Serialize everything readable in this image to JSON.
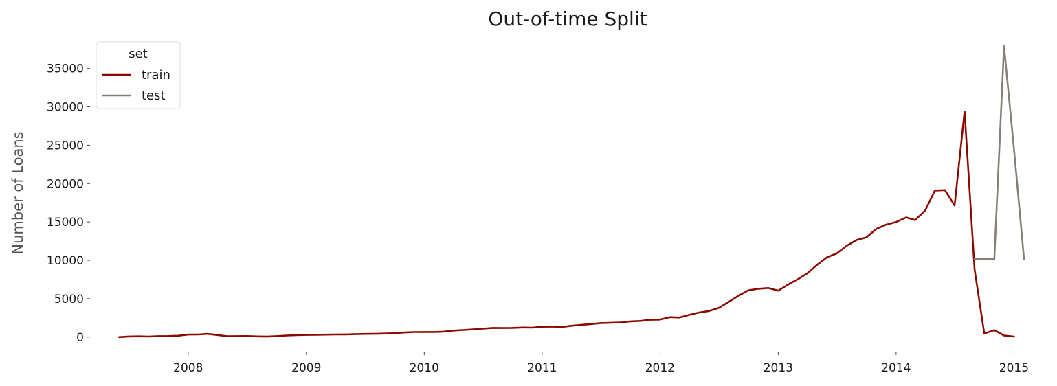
{
  "chart_data": {
    "type": "line",
    "title": "Out-of-time Split",
    "xlabel": "",
    "ylabel": "Number of Loans",
    "grid": false,
    "legend": {
      "title": "set",
      "placement": "top-left"
    },
    "xlim": [
      "2007-03-01",
      "2015-02-01"
    ],
    "ylim": [
      -1900,
      39000
    ],
    "x_ticks": [
      "2008",
      "2009",
      "2010",
      "2011",
      "2012",
      "2013",
      "2014",
      "2015"
    ],
    "y_ticks": [
      0,
      5000,
      10000,
      15000,
      20000,
      25000,
      30000,
      35000
    ],
    "series": [
      {
        "name": "train",
        "color": "#8b0a00",
        "points": [
          [
            "2007-06-01",
            0
          ],
          [
            "2007-07-01",
            80
          ],
          [
            "2007-08-01",
            100
          ],
          [
            "2007-09-01",
            70
          ],
          [
            "2007-10-01",
            120
          ],
          [
            "2007-11-01",
            130
          ],
          [
            "2007-12-01",
            180
          ],
          [
            "2008-01-01",
            330
          ],
          [
            "2008-02-01",
            340
          ],
          [
            "2008-03-01",
            420
          ],
          [
            "2008-04-01",
            270
          ],
          [
            "2008-05-01",
            110
          ],
          [
            "2008-06-01",
            120
          ],
          [
            "2008-07-01",
            130
          ],
          [
            "2008-08-01",
            90
          ],
          [
            "2008-09-01",
            60
          ],
          [
            "2008-10-01",
            120
          ],
          [
            "2008-11-01",
            200
          ],
          [
            "2008-12-01",
            250
          ],
          [
            "2009-01-01",
            280
          ],
          [
            "2009-02-01",
            290
          ],
          [
            "2009-03-01",
            320
          ],
          [
            "2009-04-01",
            340
          ],
          [
            "2009-05-01",
            350
          ],
          [
            "2009-06-01",
            370
          ],
          [
            "2009-07-01",
            410
          ],
          [
            "2009-08-01",
            420
          ],
          [
            "2009-09-01",
            450
          ],
          [
            "2009-10-01",
            500
          ],
          [
            "2009-11-01",
            600
          ],
          [
            "2009-12-01",
            650
          ],
          [
            "2010-01-01",
            660
          ],
          [
            "2010-02-01",
            660
          ],
          [
            "2010-03-01",
            700
          ],
          [
            "2010-04-01",
            850
          ],
          [
            "2010-05-01",
            920
          ],
          [
            "2010-06-01",
            1000
          ],
          [
            "2010-07-01",
            1100
          ],
          [
            "2010-08-01",
            1200
          ],
          [
            "2010-09-01",
            1180
          ],
          [
            "2010-10-01",
            1200
          ],
          [
            "2010-11-01",
            1250
          ],
          [
            "2010-12-01",
            1230
          ],
          [
            "2011-01-01",
            1350
          ],
          [
            "2011-02-01",
            1380
          ],
          [
            "2011-03-01",
            1300
          ],
          [
            "2011-04-01",
            1470
          ],
          [
            "2011-05-01",
            1580
          ],
          [
            "2011-06-01",
            1700
          ],
          [
            "2011-07-01",
            1820
          ],
          [
            "2011-08-01",
            1860
          ],
          [
            "2011-09-01",
            1900
          ],
          [
            "2011-10-01",
            2050
          ],
          [
            "2011-11-01",
            2100
          ],
          [
            "2011-12-01",
            2250
          ],
          [
            "2012-01-01",
            2280
          ],
          [
            "2012-02-01",
            2600
          ],
          [
            "2012-03-01",
            2550
          ],
          [
            "2012-04-01",
            2900
          ],
          [
            "2012-05-01",
            3200
          ],
          [
            "2012-06-01",
            3400
          ],
          [
            "2012-07-01",
            3800
          ],
          [
            "2012-08-01",
            4600
          ],
          [
            "2012-09-01",
            5400
          ],
          [
            "2012-10-01",
            6100
          ],
          [
            "2012-11-01",
            6300
          ],
          [
            "2012-12-01",
            6400
          ],
          [
            "2013-01-01",
            6050
          ],
          [
            "2013-02-01",
            6850
          ],
          [
            "2013-03-01",
            7500
          ],
          [
            "2013-04-01",
            8300
          ],
          [
            "2013-05-01",
            9400
          ],
          [
            "2013-06-01",
            10400
          ],
          [
            "2013-07-01",
            10900
          ],
          [
            "2013-08-01",
            11900
          ],
          [
            "2013-09-01",
            12650
          ],
          [
            "2013-10-01",
            13000
          ],
          [
            "2013-11-01",
            14100
          ],
          [
            "2013-12-01",
            14650
          ],
          [
            "2014-01-01",
            15000
          ],
          [
            "2014-02-01",
            15600
          ],
          [
            "2014-03-01",
            15250
          ],
          [
            "2014-04-01",
            16500
          ],
          [
            "2014-05-01",
            19100
          ],
          [
            "2014-06-01",
            19150
          ],
          [
            "2014-07-01",
            17150
          ],
          [
            "2014-08-01",
            29400
          ],
          [
            "2014-09-01",
            8800
          ],
          [
            "2014-10-01",
            450
          ],
          [
            "2014-11-01",
            900
          ],
          [
            "2014-12-01",
            200
          ],
          [
            "2015-01-01",
            60
          ]
        ]
      },
      {
        "name": "test",
        "color": "#857f78",
        "points": [
          [
            "2014-09-01",
            10200
          ],
          [
            "2014-10-01",
            10200
          ],
          [
            "2014-11-01",
            10150
          ],
          [
            "2014-12-01",
            37900
          ],
          [
            "2015-01-01",
            24500
          ],
          [
            "2015-02-01",
            10200
          ]
        ]
      }
    ]
  }
}
